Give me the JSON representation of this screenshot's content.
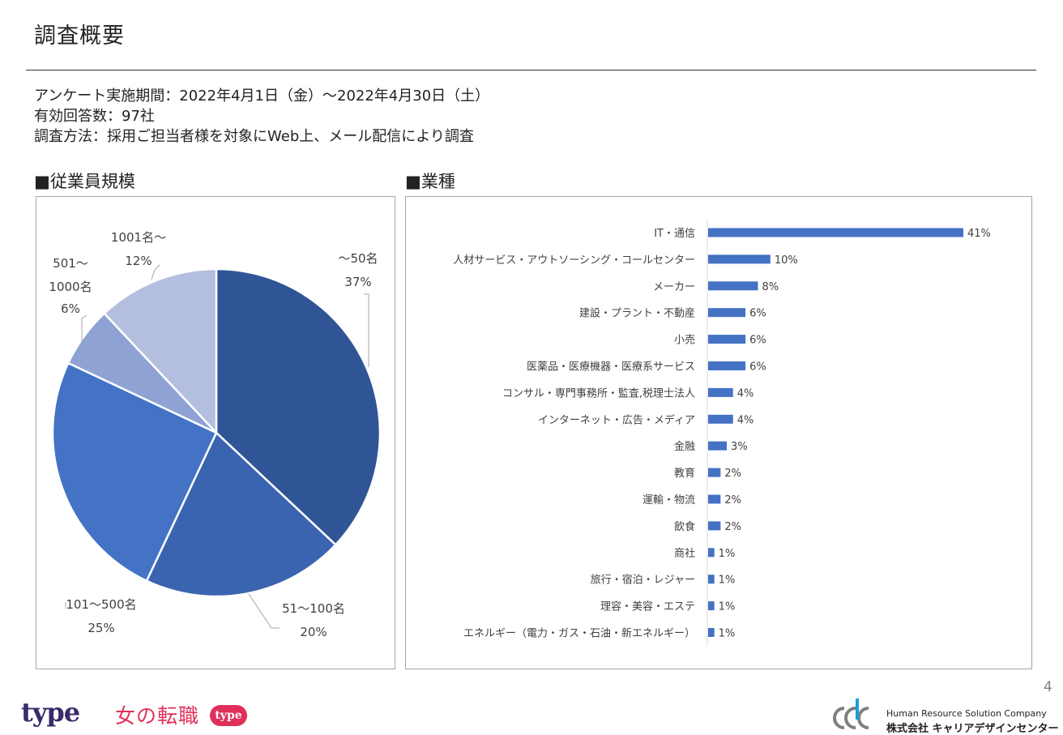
{
  "page": {
    "title": "調査概要",
    "survey_period": "アンケート実施期間：2022年4月1日（金）～2022年4月30日（土）",
    "responses": "有効回答数：97社",
    "method": "調査方法：採用ご担当者様を対象にWeb上、メール配信により調査",
    "page_number": "4"
  },
  "sections": {
    "employee_heading": "■従業員規模",
    "industry_heading": "■業種"
  },
  "footer": {
    "logo_type": "type",
    "logo_onna": "女の転職",
    "logo_badge": "type",
    "company_en": "Human Resource Solution Company",
    "company_jp": "株式会社 キャリアデザインセンター"
  },
  "chart_data": [
    {
      "type": "pie",
      "slices": [
        {
          "label": [
            "～50名"
          ],
          "percent_label": "37%",
          "value": 37,
          "color": "#2f5597"
        },
        {
          "label": [
            "51～100名"
          ],
          "percent_label": "20%",
          "value": 20,
          "color": "#3a64b0"
        },
        {
          "label": [
            "101～500名"
          ],
          "percent_label": "25%",
          "value": 25,
          "color": "#4472c4"
        },
        {
          "label": [
            "501～",
            "1000名"
          ],
          "percent_label": "6%",
          "value": 6,
          "color": "#8fa2d4"
        },
        {
          "label": [
            "1001名～"
          ],
          "percent_label": "12%",
          "value": 12,
          "color": "#b4bfe0"
        }
      ]
    },
    {
      "type": "bar",
      "orientation": "horizontal",
      "bar_color": "#4472c4",
      "categories": [
        "IT・通信",
        "人材サービス・アウトソーシング・コールセンター",
        "メーカー",
        "建設・プラント・不動産",
        "小売",
        "医薬品・医療機器・医療系サービス",
        "コンサル・専門事務所・監査,税理士法人",
        "インターネット・広告・メディア",
        "金融",
        "教育",
        "運輸・物流",
        "飲食",
        "商社",
        "旅行・宿泊・レジャー",
        "理容・美容・エステ",
        "エネルギー（電力・ガス・石油・新エネルギー）"
      ],
      "values": [
        41,
        10,
        8,
        6,
        6,
        6,
        4,
        4,
        3,
        2,
        2,
        2,
        1,
        1,
        1,
        1
      ],
      "value_labels": [
        "41%",
        "10%",
        "8%",
        "6%",
        "6%",
        "6%",
        "4%",
        "4%",
        "3%",
        "2%",
        "2%",
        "2%",
        "1%",
        "1%",
        "1%",
        "1%"
      ]
    }
  ]
}
